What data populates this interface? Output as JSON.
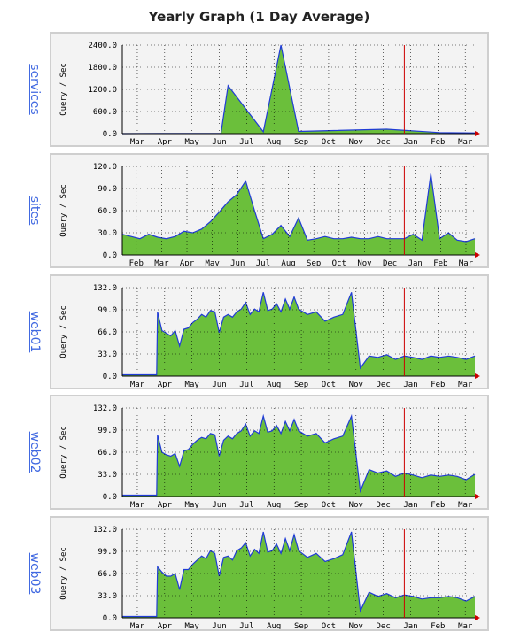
{
  "title": "Yearly Graph (1 Day Average)",
  "chart_data": [
    {
      "type": "area",
      "name": "services",
      "ylabel": "Query / Sec",
      "ylim": [
        0,
        2400
      ],
      "yticks": [
        "2400.0",
        "1800.0",
        "1200.0",
        "600.0",
        "0.0"
      ],
      "xticks": [
        "Mar",
        "Apr",
        "May",
        "Jun",
        "Jul",
        "Aug",
        "Sep",
        "Oct",
        "Nov",
        "Dec",
        "Jan",
        "Feb",
        "Mar"
      ],
      "x": [
        0,
        10,
        20,
        28,
        30,
        40,
        45,
        50,
        75,
        90,
        100
      ],
      "values": [
        0,
        5,
        5,
        5,
        1300,
        50,
        2400,
        60,
        120,
        30,
        20
      ],
      "colors": {
        "fill": "#6bbf3b",
        "line": "#1f3bd6",
        "marker": "#cc0000",
        "grid": "#000000"
      }
    },
    {
      "type": "area",
      "name": "sites",
      "ylabel": "Query / Sec",
      "ylim": [
        0,
        120
      ],
      "yticks": [
        "120.0",
        "90.0",
        "60.0",
        "30.0",
        "0.0"
      ],
      "xticks": [
        "Feb",
        "Mar",
        "Apr",
        "May",
        "Jun",
        "Jul",
        "Aug",
        "Sep",
        "Oct",
        "Nov",
        "Dec",
        "Jan",
        "Feb",
        "Mar"
      ],
      "x": [
        0,
        10,
        20,
        30,
        40,
        50,
        60,
        70,
        80,
        90,
        100,
        110,
        120,
        130,
        140,
        150,
        160,
        170,
        180,
        190,
        200,
        210,
        220,
        230,
        240,
        250,
        260,
        270,
        280,
        290,
        300,
        310,
        320,
        330,
        340,
        350,
        360,
        370,
        380,
        390,
        400
      ],
      "values": [
        28,
        25,
        22,
        28,
        24,
        22,
        25,
        32,
        30,
        35,
        45,
        58,
        72,
        82,
        100,
        60,
        22,
        28,
        40,
        25,
        50,
        20,
        22,
        25,
        22,
        22,
        24,
        22,
        22,
        25,
        22,
        22,
        22,
        28,
        20,
        110,
        22,
        30,
        20,
        18,
        22
      ],
      "colors": {
        "fill": "#6bbf3b",
        "line": "#1f3bd6",
        "marker": "#cc0000",
        "grid": "#000000"
      }
    },
    {
      "type": "area",
      "name": "web01",
      "ylabel": "Query / Sec",
      "ylim": [
        0,
        132
      ],
      "yticks": [
        "132.0",
        "99.0",
        "66.0",
        "33.0",
        "0.0"
      ],
      "xticks": [
        "Mar",
        "Apr",
        "May",
        "Jun",
        "Jul",
        "Aug",
        "Sep",
        "Oct",
        "Nov",
        "Dec",
        "Jan",
        "Feb",
        "Mar"
      ],
      "x": [
        0,
        10,
        20,
        30,
        39,
        40,
        45,
        50,
        55,
        60,
        65,
        70,
        75,
        80,
        85,
        90,
        95,
        100,
        105,
        110,
        115,
        120,
        125,
        130,
        135,
        140,
        145,
        150,
        155,
        160,
        165,
        170,
        175,
        180,
        185,
        190,
        195,
        200,
        210,
        220,
        230,
        240,
        250,
        260,
        270,
        280,
        290,
        300,
        310,
        320,
        330,
        340,
        350,
        360,
        370,
        380,
        390,
        400
      ],
      "values": [
        2,
        2,
        2,
        2,
        2,
        96,
        68,
        64,
        60,
        68,
        45,
        70,
        72,
        80,
        85,
        92,
        88,
        98,
        96,
        65,
        88,
        92,
        88,
        96,
        100,
        110,
        92,
        100,
        96,
        125,
        98,
        100,
        108,
        96,
        115,
        100,
        118,
        100,
        92,
        96,
        82,
        88,
        92,
        125,
        12,
        30,
        28,
        32,
        25,
        30,
        28,
        25,
        30,
        28,
        30,
        28,
        25,
        30
      ],
      "colors": {
        "fill": "#6bbf3b",
        "line": "#1f3bd6",
        "marker": "#cc0000",
        "grid": "#000000"
      }
    },
    {
      "type": "area",
      "name": "web02",
      "ylabel": "Query / Sec",
      "ylim": [
        0,
        132
      ],
      "yticks": [
        "132.0",
        "99.0",
        "66.0",
        "33.0",
        "0.0"
      ],
      "xticks": [
        "Mar",
        "Apr",
        "May",
        "Jun",
        "Jul",
        "Aug",
        "Sep",
        "Oct",
        "Nov",
        "Dec",
        "Jan",
        "Feb",
        "Mar"
      ],
      "x": [
        0,
        10,
        20,
        30,
        39,
        40,
        45,
        50,
        55,
        60,
        65,
        70,
        75,
        80,
        85,
        90,
        95,
        100,
        105,
        110,
        115,
        120,
        125,
        130,
        135,
        140,
        145,
        150,
        155,
        160,
        165,
        170,
        175,
        180,
        185,
        190,
        195,
        200,
        210,
        220,
        230,
        240,
        250,
        260,
        270,
        280,
        290,
        300,
        310,
        320,
        330,
        340,
        350,
        360,
        370,
        380,
        390,
        400
      ],
      "values": [
        2,
        2,
        2,
        2,
        2,
        92,
        66,
        62,
        60,
        64,
        45,
        68,
        70,
        78,
        84,
        88,
        86,
        94,
        92,
        60,
        84,
        90,
        86,
        94,
        98,
        108,
        90,
        98,
        94,
        120,
        96,
        98,
        106,
        94,
        112,
        98,
        115,
        98,
        90,
        94,
        80,
        86,
        90,
        120,
        8,
        40,
        35,
        38,
        30,
        35,
        32,
        28,
        32,
        30,
        32,
        30,
        25,
        33
      ],
      "colors": {
        "fill": "#6bbf3b",
        "line": "#1f3bd6",
        "marker": "#cc0000",
        "grid": "#000000"
      }
    },
    {
      "type": "area",
      "name": "web03",
      "ylabel": "Query / Sec",
      "ylim": [
        0,
        132
      ],
      "yticks": [
        "132.0",
        "99.0",
        "66.0",
        "33.0",
        "0.0"
      ],
      "xticks": [
        "Mar",
        "Apr",
        "May",
        "Jun",
        "Jul",
        "Aug",
        "Sep",
        "Oct",
        "Nov",
        "Dec",
        "Jan",
        "Feb",
        "Mar"
      ],
      "x": [
        0,
        10,
        20,
        30,
        39,
        40,
        45,
        50,
        55,
        60,
        65,
        70,
        75,
        80,
        85,
        90,
        95,
        100,
        105,
        110,
        115,
        120,
        125,
        130,
        135,
        140,
        145,
        150,
        155,
        160,
        165,
        170,
        175,
        180,
        185,
        190,
        195,
        200,
        210,
        220,
        230,
        240,
        250,
        260,
        270,
        280,
        290,
        300,
        310,
        320,
        330,
        340,
        350,
        360,
        370,
        380,
        390,
        400
      ],
      "values": [
        2,
        2,
        2,
        2,
        2,
        76,
        68,
        62,
        62,
        66,
        42,
        72,
        72,
        80,
        86,
        92,
        88,
        100,
        96,
        62,
        90,
        92,
        86,
        100,
        104,
        112,
        92,
        102,
        96,
        128,
        98,
        100,
        110,
        96,
        118,
        100,
        124,
        100,
        90,
        96,
        84,
        88,
        94,
        128,
        10,
        38,
        32,
        36,
        30,
        34,
        32,
        28,
        30,
        30,
        32,
        30,
        25,
        32
      ],
      "colors": {
        "fill": "#6bbf3b",
        "line": "#1f3bd6",
        "marker": "#cc0000",
        "grid": "#000000"
      }
    }
  ]
}
